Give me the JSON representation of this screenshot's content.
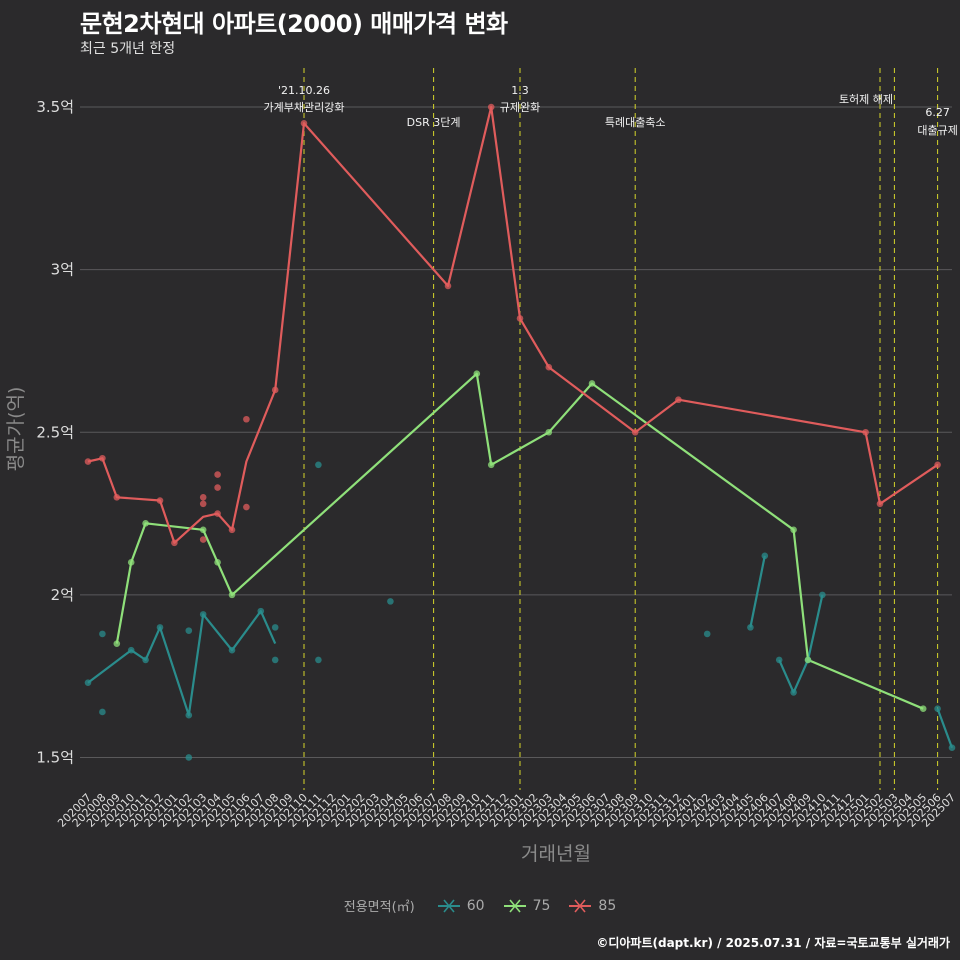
{
  "title": "문현2차현대 아파트(2000) 매매가격 변화",
  "subtitle": "최근 5개년 한정",
  "caption": "©디아파트(dapt.kr) / 2025.07.31 / 자료=국토교통부 실거래가",
  "chart_data": {
    "type": "line",
    "xlabel": "거래년월",
    "ylabel": "평균가(억)",
    "ylim": [
      1.4,
      3.62
    ],
    "yticks": [
      1.5,
      2,
      2.5,
      3,
      3.5
    ],
    "ytick_labels": [
      "1.5억",
      "2억",
      "2.5억",
      "3억",
      "3.5억"
    ],
    "grid": true,
    "legend_position": "bottom",
    "legend_title": "전용면적(㎡)",
    "categories": [
      "202007",
      "202008",
      "202009",
      "202010",
      "202011",
      "202012",
      "202101",
      "202102",
      "202103",
      "202104",
      "202105",
      "202106",
      "202107",
      "202108",
      "202109",
      "202110",
      "202111",
      "202112",
      "202201",
      "202202",
      "202203",
      "202204",
      "202205",
      "202206",
      "202207",
      "202208",
      "202209",
      "202210",
      "202211",
      "202212",
      "202301",
      "202302",
      "202303",
      "202304",
      "202305",
      "202306",
      "202307",
      "202308",
      "202309",
      "202310",
      "202311",
      "202312",
      "202401",
      "202402",
      "202403",
      "202404",
      "202405",
      "202406",
      "202407",
      "202408",
      "202409",
      "202410",
      "202411",
      "202412",
      "202501",
      "202502",
      "202503",
      "202504",
      "202505",
      "202506",
      "202507"
    ],
    "series": [
      {
        "name": "60",
        "color": "#2a8c8c",
        "lines": [
          [
            [
              "202007",
              1.73
            ],
            [
              "202010",
              1.83
            ],
            [
              "202011",
              1.8
            ],
            [
              "202012",
              1.9
            ],
            [
              "202102",
              1.63
            ],
            [
              "202103",
              1.94
            ],
            [
              "202105",
              1.83
            ],
            [
              "202107",
              1.95
            ],
            [
              "202108",
              1.85
            ]
          ],
          [
            [
              "202405",
              1.9
            ],
            [
              "202406",
              2.12
            ]
          ],
          [
            [
              "202407",
              1.8
            ],
            [
              "202408",
              1.7
            ],
            [
              "202409",
              1.8
            ],
            [
              "202410",
              2.0
            ]
          ],
          [
            [
              "202506",
              1.65
            ],
            [
              "202507",
              1.53
            ]
          ]
        ],
        "points": [
          [
            "202007",
            1.73
          ],
          [
            "202008",
            1.64
          ],
          [
            "202008",
            1.88
          ],
          [
            "202010",
            1.83
          ],
          [
            "202011",
            1.8
          ],
          [
            "202012",
            1.9
          ],
          [
            "202102",
            1.89
          ],
          [
            "202102",
            1.5
          ],
          [
            "202102",
            1.63
          ],
          [
            "202103",
            1.94
          ],
          [
            "202105",
            1.83
          ],
          [
            "202107",
            1.95
          ],
          [
            "202108",
            1.9
          ],
          [
            "202108",
            1.8
          ],
          [
            "202111",
            2.4
          ],
          [
            "202111",
            1.8
          ],
          [
            "202204",
            1.98
          ],
          [
            "202402",
            1.88
          ],
          [
            "202405",
            1.9
          ],
          [
            "202406",
            2.12
          ],
          [
            "202407",
            1.8
          ],
          [
            "202408",
            1.7
          ],
          [
            "202409",
            1.8
          ],
          [
            "202410",
            2.0
          ],
          [
            "202506",
            1.65
          ],
          [
            "202507",
            1.53
          ]
        ]
      },
      {
        "name": "75",
        "color": "#8fe07a",
        "lines": [
          [
            [
              "202009",
              1.85
            ],
            [
              "202010",
              2.1
            ],
            [
              "202011",
              2.22
            ],
            [
              "202103",
              2.2
            ],
            [
              "202105",
              2.0
            ],
            [
              "202210",
              2.68
            ],
            [
              "202211",
              2.4
            ],
            [
              "202303",
              2.5
            ],
            [
              "202306",
              2.65
            ],
            [
              "202408",
              2.2
            ],
            [
              "202409",
              1.8
            ],
            [
              "202505",
              1.65
            ]
          ]
        ],
        "points": [
          [
            "202009",
            1.85
          ],
          [
            "202010",
            2.1
          ],
          [
            "202011",
            2.22
          ],
          [
            "202103",
            2.2
          ],
          [
            "202104",
            2.1
          ],
          [
            "202105",
            2.0
          ],
          [
            "202210",
            2.68
          ],
          [
            "202211",
            2.4
          ],
          [
            "202303",
            2.5
          ],
          [
            "202306",
            2.65
          ],
          [
            "202408",
            2.2
          ],
          [
            "202409",
            1.8
          ],
          [
            "202505",
            1.65
          ]
        ]
      },
      {
        "name": "85",
        "color": "#e05c5c",
        "lines": [
          [
            [
              "202007",
              2.41
            ],
            [
              "202008",
              2.42
            ],
            [
              "202009",
              2.3
            ],
            [
              "202012",
              2.29
            ],
            [
              "202101",
              2.16
            ],
            [
              "202103",
              2.24
            ],
            [
              "202104",
              2.25
            ],
            [
              "202105",
              2.2
            ],
            [
              "202106",
              2.41
            ],
            [
              "202108",
              2.63
            ],
            [
              "202110",
              3.45
            ],
            [
              "202208",
              2.95
            ],
            [
              "202211",
              3.5
            ],
            [
              "202301",
              2.85
            ],
            [
              "202303",
              2.7
            ],
            [
              "202309",
              2.5
            ],
            [
              "202312",
              2.6
            ],
            [
              "202501",
              2.5
            ],
            [
              "202502",
              2.28
            ],
            [
              "202506",
              2.4
            ]
          ]
        ],
        "points": [
          [
            "202007",
            2.41
          ],
          [
            "202008",
            2.42
          ],
          [
            "202009",
            2.3
          ],
          [
            "202012",
            2.29
          ],
          [
            "202101",
            2.16
          ],
          [
            "202103",
            2.3
          ],
          [
            "202103",
            2.28
          ],
          [
            "202103",
            2.17
          ],
          [
            "202104",
            2.37
          ],
          [
            "202104",
            2.33
          ],
          [
            "202104",
            2.25
          ],
          [
            "202105",
            2.2
          ],
          [
            "202106",
            2.54
          ],
          [
            "202106",
            2.27
          ],
          [
            "202108",
            2.63
          ],
          [
            "202110",
            3.45
          ],
          [
            "202208",
            2.95
          ],
          [
            "202211",
            3.5
          ],
          [
            "202301",
            2.85
          ],
          [
            "202303",
            2.7
          ],
          [
            "202309",
            2.5
          ],
          [
            "202312",
            2.6
          ],
          [
            "202501",
            2.5
          ],
          [
            "202502",
            2.28
          ],
          [
            "202506",
            2.4
          ]
        ]
      }
    ],
    "events": [
      {
        "x": "202110",
        "lines": [
          "'21.10.26",
          "가계부채관리강화"
        ]
      },
      {
        "x": "202207",
        "lines": [
          "DSR 3단계"
        ]
      },
      {
        "x": "202301",
        "lines": [
          "1.3",
          "규제완화"
        ]
      },
      {
        "x": "202309",
        "lines": [
          "특례대출축소"
        ]
      },
      {
        "x": "202502",
        "lines": [
          "토허제 해제"
        ]
      },
      {
        "x": "202503",
        "lines": []
      },
      {
        "x": "202506",
        "lines": [
          "6.27",
          "대출규제"
        ]
      }
    ]
  }
}
